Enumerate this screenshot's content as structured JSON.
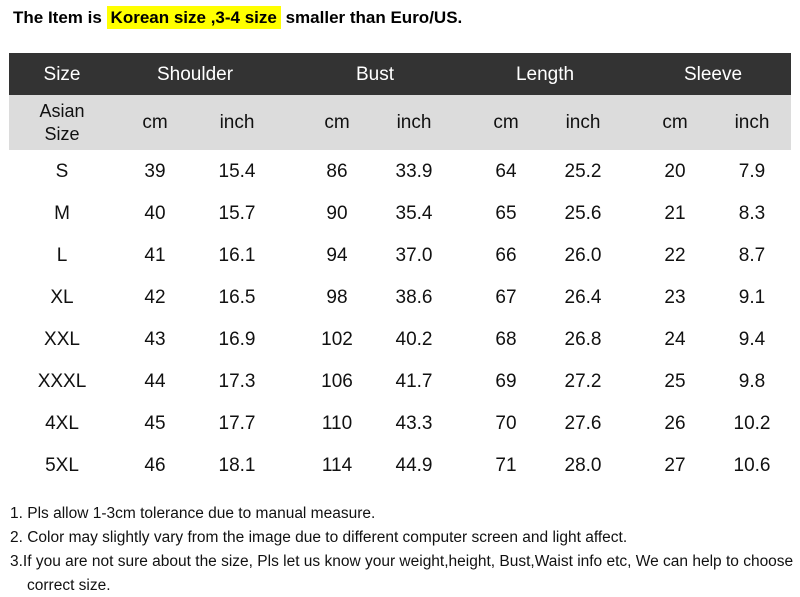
{
  "header": {
    "prefix": "The Item is",
    "highlight": "Korean size ,3-4 size",
    "suffix": "smaller than Euro/US."
  },
  "table": {
    "groups": [
      "Size",
      "Shoulder",
      "Bust",
      "Length",
      "Sleeve"
    ],
    "subheader": [
      "Asian Size",
      "cm",
      "inch",
      "cm",
      "inch",
      "cm",
      "inch",
      "cm",
      "inch"
    ],
    "rows": [
      [
        "S",
        "39",
        "15.4",
        "86",
        "33.9",
        "64",
        "25.2",
        "20",
        "7.9"
      ],
      [
        "M",
        "40",
        "15.7",
        "90",
        "35.4",
        "65",
        "25.6",
        "21",
        "8.3"
      ],
      [
        "L",
        "41",
        "16.1",
        "94",
        "37.0",
        "66",
        "26.0",
        "22",
        "8.7"
      ],
      [
        "XL",
        "42",
        "16.5",
        "98",
        "38.6",
        "67",
        "26.4",
        "23",
        "9.1"
      ],
      [
        "XXL",
        "43",
        "16.9",
        "102",
        "40.2",
        "68",
        "26.8",
        "24",
        "9.4"
      ],
      [
        "XXXL",
        "44",
        "17.3",
        "106",
        "41.7",
        "69",
        "27.2",
        "25",
        "9.8"
      ],
      [
        "4XL",
        "45",
        "17.7",
        "110",
        "43.3",
        "70",
        "27.6",
        "26",
        "10.2"
      ],
      [
        "5XL",
        "46",
        "18.1",
        "114",
        "44.9",
        "71",
        "28.0",
        "27",
        "10.6"
      ]
    ]
  },
  "notes": [
    "1. Pls allow 1-3cm tolerance due to manual measure.",
    "2. Color may slightly vary from the image due to different computer screen and light affect.",
    "3.If you are not sure about the size, Pls let us know your weight,height, Bust,Waist info etc, We can help to choose correct size."
  ]
}
